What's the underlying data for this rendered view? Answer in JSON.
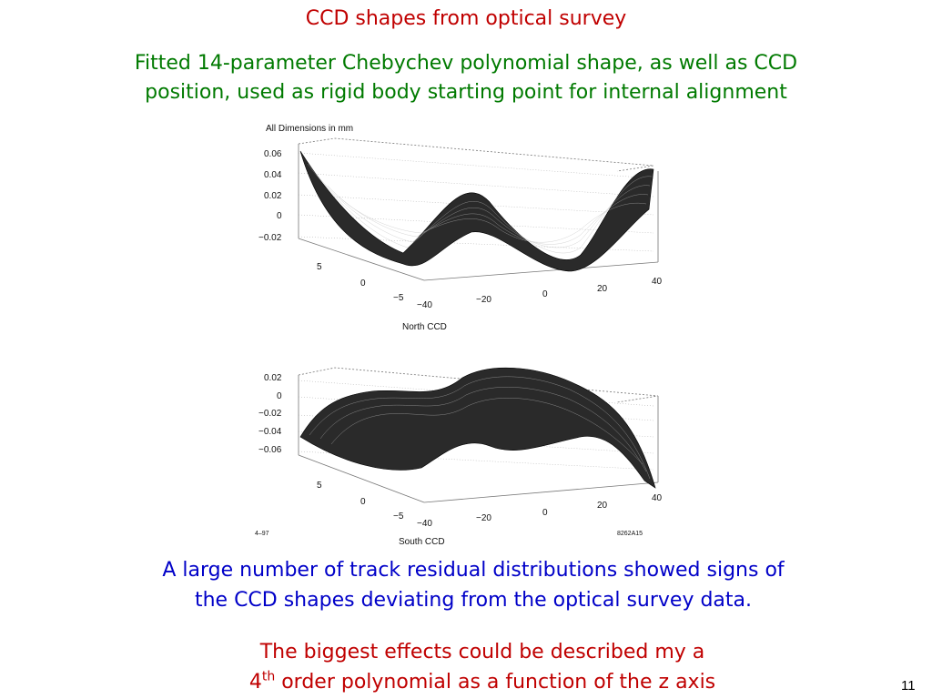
{
  "slide": {
    "title": "CCD shapes from optical survey",
    "subtitle_line1": "Fitted 14-parameter Chebychev polynomial shape, as well as CCD",
    "subtitle_line2": "position, used as rigid body starting point for internal alignment",
    "paragraph1_line1": "A large number of track residual distributions showed signs of",
    "paragraph1_line2": "the CCD shapes deviating from the optical survey data.",
    "paragraph2_line1": "The biggest effects could be described my a",
    "paragraph2_line2_pre": "4",
    "paragraph2_line2_sup": "th",
    "paragraph2_line2_post": " order polynomial as a function of the z axis",
    "page_number": "11",
    "colors": {
      "title": "#c00000",
      "subtitle": "#007a00",
      "paragraph1": "#0000c8",
      "paragraph2": "#c00000"
    }
  },
  "figure": {
    "header": "All Dimensions in mm",
    "north": {
      "caption": "North CCD",
      "z_ticks": [
        "0.06",
        "0.04",
        "0.02",
        "0",
        "−0.02"
      ],
      "y_ticks": [
        "5",
        "0",
        "−5"
      ],
      "x_ticks": [
        "−40",
        "−20",
        "0",
        "20",
        "40"
      ]
    },
    "south": {
      "caption": "South CCD",
      "z_ticks": [
        "0.02",
        "0",
        "−0.02",
        "−0.04",
        "−0.06"
      ],
      "y_ticks": [
        "5",
        "0",
        "−5"
      ],
      "x_ticks": [
        "−40",
        "−20",
        "0",
        "20",
        "40"
      ]
    },
    "footer_left": "4–97",
    "footer_right": "8262A15"
  }
}
